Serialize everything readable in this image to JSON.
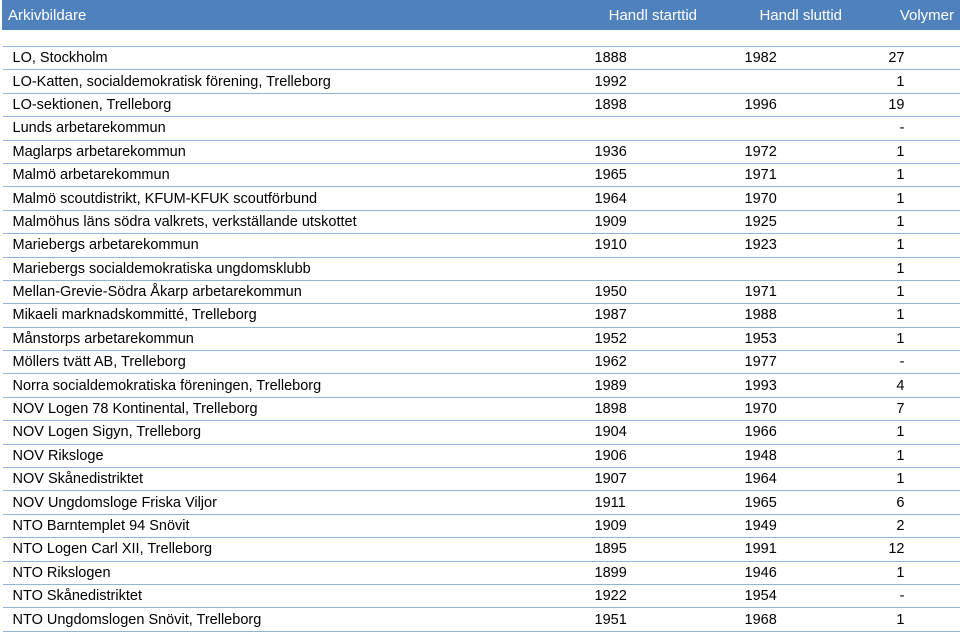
{
  "header": {
    "col1": "Arkivbildare",
    "col2": "Handl starttid",
    "col3": "Handl sluttid",
    "col4": "Volymer"
  },
  "rows": [
    {
      "name": "LO, Stockholm",
      "start": "1888",
      "end": "1982",
      "vol": "27"
    },
    {
      "name": "LO-Katten, socialdemokratisk förening, Trelleborg",
      "start": "1992",
      "end": "",
      "vol": "1"
    },
    {
      "name": "LO-sektionen, Trelleborg",
      "start": "1898",
      "end": "1996",
      "vol": "19"
    },
    {
      "name": "Lunds arbetarekommun",
      "start": "",
      "end": "",
      "vol": "-"
    },
    {
      "name": "Maglarps arbetarekommun",
      "start": "1936",
      "end": "1972",
      "vol": "1"
    },
    {
      "name": "Malmö arbetarekommun",
      "start": "1965",
      "end": "1971",
      "vol": "1"
    },
    {
      "name": "Malmö scoutdistrikt, KFUM-KFUK scoutförbund",
      "start": "1964",
      "end": "1970",
      "vol": "1"
    },
    {
      "name": "Malmöhus läns södra valkrets, verkställande utskottet",
      "start": "1909",
      "end": "1925",
      "vol": "1"
    },
    {
      "name": "Mariebergs arbetarekommun",
      "start": "1910",
      "end": "1923",
      "vol": "1"
    },
    {
      "name": "Mariebergs socialdemokratiska ungdomsklubb",
      "start": "",
      "end": "",
      "vol": "1"
    },
    {
      "name": "Mellan-Grevie-Södra Åkarp arbetarekommun",
      "start": "1950",
      "end": "1971",
      "vol": "1"
    },
    {
      "name": "Mikaeli marknadskommitté, Trelleborg",
      "start": "1987",
      "end": "1988",
      "vol": "1"
    },
    {
      "name": "Månstorps arbetarekommun",
      "start": "1952",
      "end": "1953",
      "vol": "1"
    },
    {
      "name": "Möllers tvätt  AB, Trelleborg",
      "start": "1962",
      "end": "1977",
      "vol": "-"
    },
    {
      "name": "Norra socialdemokratiska föreningen, Trelleborg",
      "start": "1989",
      "end": "1993",
      "vol": "4"
    },
    {
      "name": "NOV Logen 78 Kontinental, Trelleborg",
      "start": "1898",
      "end": "1970",
      "vol": "7"
    },
    {
      "name": "NOV Logen Sigyn, Trelleborg",
      "start": "1904",
      "end": "1966",
      "vol": "1"
    },
    {
      "name": "NOV Riksloge",
      "start": "1906",
      "end": "1948",
      "vol": "1"
    },
    {
      "name": "NOV Skånedistriktet",
      "start": "1907",
      "end": "1964",
      "vol": "1"
    },
    {
      "name": "NOV Ungdomsloge Friska Viljor",
      "start": "1911",
      "end": "1965",
      "vol": "6"
    },
    {
      "name": "NTO Barntemplet 94 Snövit",
      "start": "1909",
      "end": "1949",
      "vol": "2"
    },
    {
      "name": "NTO Logen Carl XII, Trelleborg",
      "start": "1895",
      "end": "1991",
      "vol": "12"
    },
    {
      "name": "NTO Rikslogen",
      "start": "1899",
      "end": "1946",
      "vol": "1"
    },
    {
      "name": "NTO Skånedistriktet",
      "start": "1922",
      "end": "1954",
      "vol": "-"
    },
    {
      "name": "NTO Ungdomslogen Snövit, Trelleborg",
      "start": "1951",
      "end": "1968",
      "vol": "1"
    }
  ]
}
